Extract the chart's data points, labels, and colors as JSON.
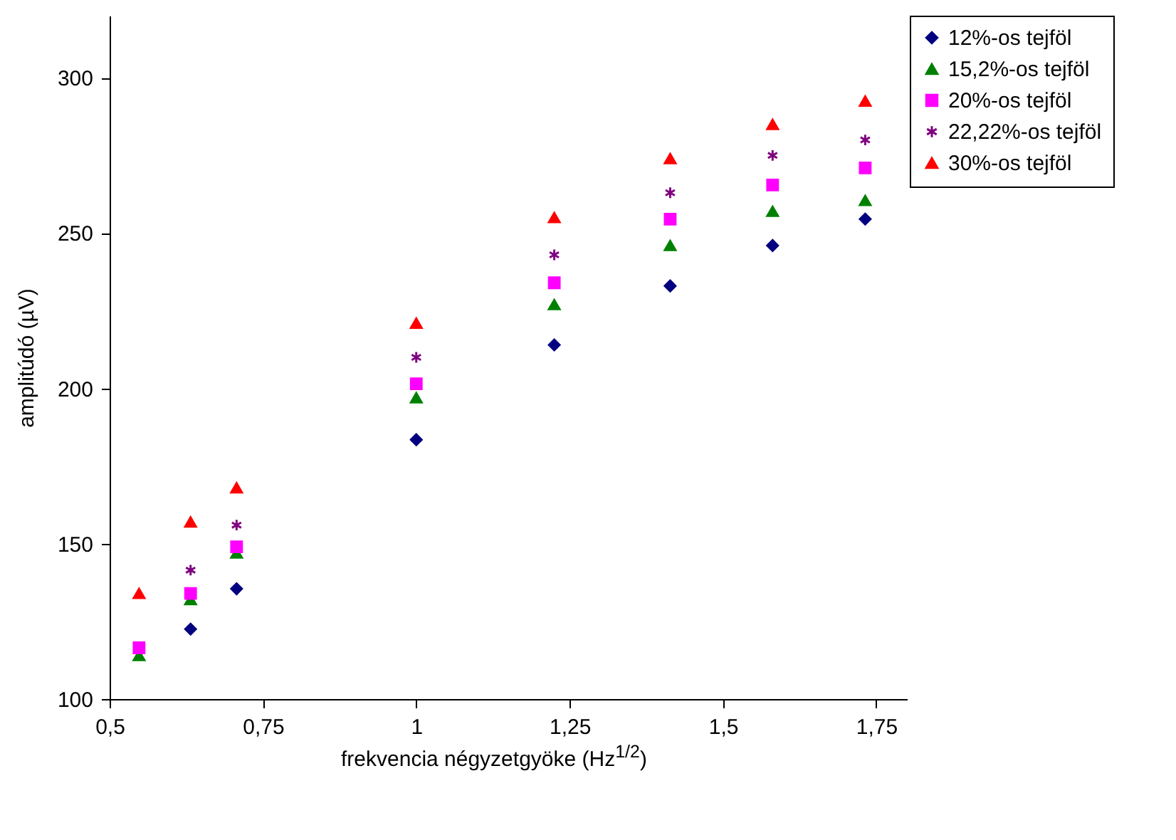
{
  "chart_data": {
    "type": "scatter",
    "xlabel": "frekvencia négyzetgyöke (Hz$^{1/2}$)",
    "ylabel": "amplitúdó (µV)",
    "x": [
      0.548,
      0.632,
      0.707,
      1.0,
      1.225,
      1.414,
      1.581,
      1.732
    ],
    "xlim": [
      0.5,
      1.8
    ],
    "xticks": [
      {
        "value": 0.5,
        "label": "0,5"
      },
      {
        "value": 0.75,
        "label": "0,75"
      },
      1,
      {
        "value": 1.25,
        "label": "1,25"
      },
      {
        "value": 1.5,
        "label": "1,5"
      },
      {
        "value": 1.75,
        "label": "1,75"
      }
    ],
    "ylim": [
      100,
      320
    ],
    "yticks": [
      100,
      150,
      200,
      250,
      300
    ],
    "grid": false,
    "legend": "right",
    "series": [
      {
        "name": "12%-os tejföl",
        "color": "#000080",
        "marker": "diamond",
        "values": [
          null,
          122.5,
          135.5,
          183.5,
          214,
          233,
          246,
          254.5
        ]
      },
      {
        "name": "15,2%-os tejföl",
        "color": "#008000",
        "marker": "triangle",
        "values": [
          114,
          132,
          147,
          197,
          227,
          246,
          257,
          260.5
        ]
      },
      {
        "name": "20%-os tejföl",
        "color": "#ff00ff",
        "marker": "square",
        "values": [
          116.5,
          134,
          149,
          201.5,
          234,
          254.5,
          265.5,
          271
        ]
      },
      {
        "name": "22,22%-os tejföl",
        "color": "#800080",
        "marker": "cross",
        "values": [
          null,
          141.5,
          156,
          210,
          243,
          263,
          275,
          280
        ]
      },
      {
        "name": "30%-os tejföl",
        "color": "#ff0000",
        "marker": "triangle",
        "values": [
          134,
          157,
          168,
          221,
          255,
          274,
          285,
          292.5
        ]
      }
    ]
  }
}
